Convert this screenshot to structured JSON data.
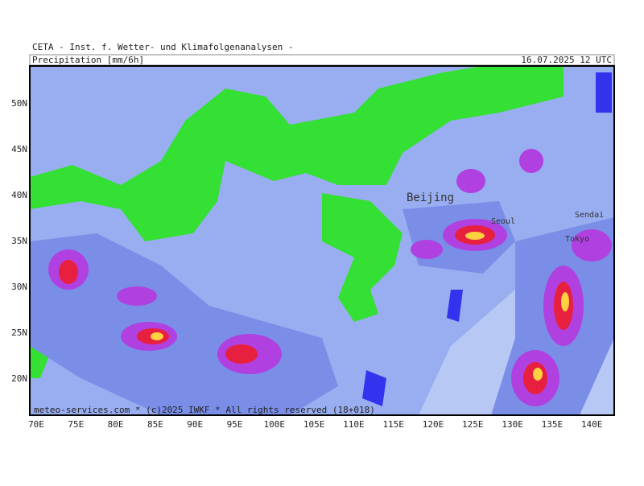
{
  "header": {
    "title": "CETA - Inst. f. Wetter- und Klimafolgenanalysen -",
    "variable": "Precipitation [mm/6h]",
    "datetime": "16.07.2025 12 UTC"
  },
  "map": {
    "lat_labels": [
      "50N",
      "45N",
      "40N",
      "35N",
      "30N",
      "25N",
      "20N"
    ],
    "lon_labels": [
      "70E",
      "75E",
      "80E",
      "85E",
      "90E",
      "95E",
      "100E",
      "105E",
      "110E",
      "115E",
      "120E",
      "125E",
      "130E",
      "135E",
      "140E"
    ],
    "cities": [
      "Beijing",
      "Seoul",
      "Sendai",
      "Tokyo"
    ]
  },
  "footer": "meteo-services.com * (c)2025 IWKF * All rights reserved (18+018)"
}
